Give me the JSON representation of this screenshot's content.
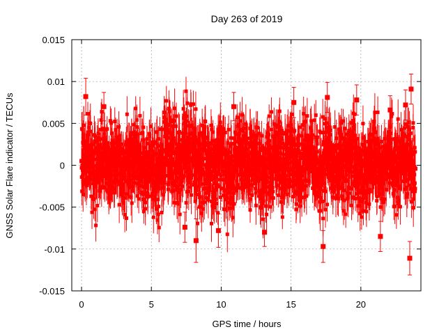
{
  "chart_data": {
    "type": "scatter",
    "title": "Day 263 of 2019",
    "xlabel": "GPS time / hours",
    "ylabel": "GNSS Solar Flare indicator / TECUs",
    "xlim": [
      -0.7,
      24.3
    ],
    "ylim": [
      -0.015,
      0.015
    ],
    "x_ticks": [
      0,
      5,
      10,
      15,
      20
    ],
    "x_tick_labels": [
      "0",
      "5",
      "10",
      "15",
      "20"
    ],
    "y_ticks": [
      -0.015,
      -0.01,
      -0.005,
      0,
      0.005,
      0.01,
      0.015
    ],
    "y_tick_labels": [
      "-0.015",
      "-0.01",
      "-0.005",
      "0",
      "0.005",
      "0.01",
      "0.015"
    ],
    "grid": true,
    "error_bars": true,
    "series_color": "#ff0000",
    "series": [
      {
        "x": [
          0.0,
          0.5,
          1.0,
          1.5,
          2.0,
          2.5,
          3.0,
          3.5,
          4.0,
          4.5,
          5.0,
          5.5,
          6.0,
          6.5,
          7.0,
          7.5,
          8.0,
          8.5,
          9.0,
          9.5,
          10.0,
          10.5,
          11.0,
          11.5,
          12.0,
          12.5,
          13.0,
          13.5,
          14.0,
          14.5,
          15.0,
          15.5,
          16.0,
          16.5,
          17.0,
          17.5,
          18.0,
          18.5,
          19.0,
          19.5,
          20.0,
          20.5,
          21.0,
          21.5,
          22.0,
          22.5,
          23.0,
          23.5,
          23.9
        ],
        "y": [
          0.0005,
          0.0012,
          -0.0008,
          0.0015,
          -0.0003,
          0.0009,
          -0.0011,
          0.0004,
          0.0013,
          -0.0006,
          0.0002,
          -0.0014,
          0.0018,
          0.0007,
          -0.0009,
          0.0021,
          0.0016,
          -0.0012,
          0.0008,
          -0.0004,
          0.0011,
          -0.0017,
          0.0006,
          0.0014,
          -0.0005,
          0.0009,
          -0.0013,
          0.0003,
          0.0017,
          -0.0002,
          0.0012,
          -0.001,
          0.0005,
          0.0008,
          -0.0015,
          0.0019,
          -0.0007,
          0.001,
          -0.0003,
          0.0013,
          -0.0012,
          0.0004,
          0.0009,
          -0.0008,
          0.0015,
          -0.0006,
          0.0011,
          0.0002,
          -0.0004
        ],
        "yerr": [
          0.0035,
          0.0034,
          0.0036,
          0.0035,
          0.0033,
          0.0035,
          0.0036,
          0.0034,
          0.0035,
          0.0036,
          0.0035,
          0.0037,
          0.0038,
          0.0036,
          0.0039,
          0.004,
          0.0041,
          0.004,
          0.0039,
          0.0038,
          0.0038,
          0.0039,
          0.0037,
          0.0036,
          0.0037,
          0.0038,
          0.0039,
          0.0037,
          0.0036,
          0.0037,
          0.0038,
          0.0036,
          0.0035,
          0.0036,
          0.0038,
          0.0039,
          0.0037,
          0.0036,
          0.0035,
          0.0036,
          0.0038,
          0.0037,
          0.0036,
          0.0035,
          0.0036,
          0.0037,
          0.0036,
          0.0035,
          0.0034
        ]
      }
    ],
    "outliers": {
      "x": [
        0.3,
        1.6,
        7.4,
        8.2,
        9.8,
        10.9,
        13.1,
        15.2,
        17.3,
        17.6,
        19.7,
        21.4,
        22.1,
        23.2,
        23.6,
        23.5
      ],
      "y": [
        0.0082,
        0.007,
        -0.0074,
        -0.009,
        -0.0078,
        0.007,
        -0.008,
        0.0075,
        -0.0097,
        0.0081,
        0.0078,
        -0.0085,
        0.0066,
        0.0072,
        0.0091,
        -0.0111
      ],
      "yerr": [
        0.0022,
        0.0017,
        0.0018,
        0.0026,
        0.002,
        0.0017,
        0.0017,
        0.0018,
        0.0019,
        0.0018,
        0.0018,
        0.0018,
        0.0017,
        0.0018,
        0.0018,
        0.002
      ]
    }
  }
}
